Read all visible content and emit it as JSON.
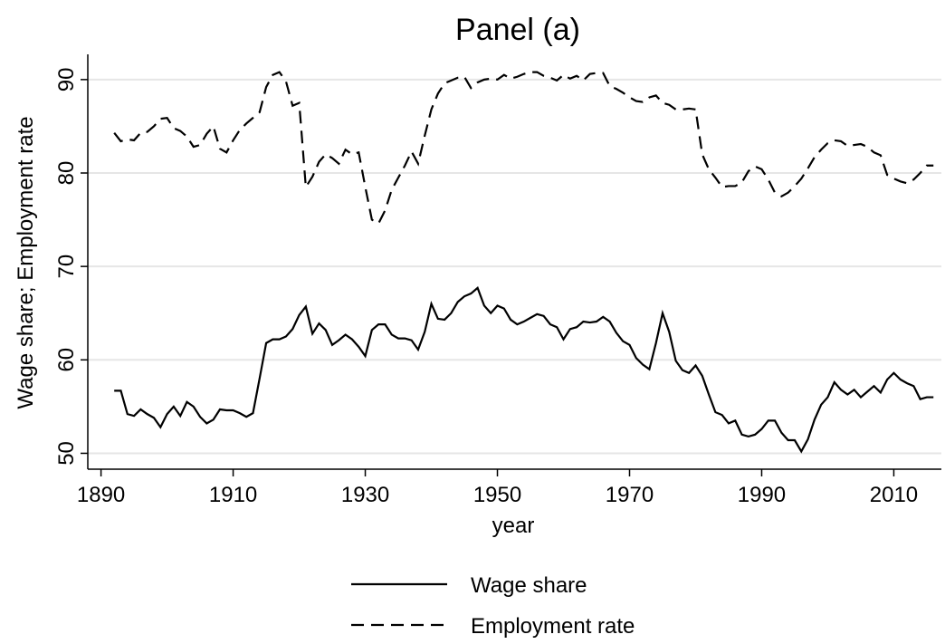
{
  "chart_data": {
    "type": "line",
    "title": "Panel (a)",
    "x_label": "year",
    "y_label": "Wage share; Employment rate",
    "x": [
      1892,
      1893,
      1894,
      1895,
      1896,
      1897,
      1898,
      1899,
      1900,
      1901,
      1902,
      1903,
      1904,
      1905,
      1906,
      1907,
      1908,
      1909,
      1910,
      1911,
      1912,
      1913,
      1914,
      1915,
      1916,
      1917,
      1918,
      1919,
      1920,
      1921,
      1922,
      1923,
      1924,
      1925,
      1926,
      1927,
      1928,
      1929,
      1930,
      1931,
      1932,
      1933,
      1934,
      1935,
      1936,
      1937,
      1938,
      1939,
      1940,
      1941,
      1942,
      1943,
      1944,
      1945,
      1946,
      1947,
      1948,
      1949,
      1950,
      1951,
      1952,
      1953,
      1954,
      1955,
      1956,
      1957,
      1958,
      1959,
      1960,
      1961,
      1962,
      1963,
      1964,
      1965,
      1966,
      1967,
      1968,
      1969,
      1970,
      1971,
      1972,
      1973,
      1974,
      1975,
      1976,
      1977,
      1978,
      1979,
      1980,
      1981,
      1982,
      1983,
      1984,
      1985,
      1986,
      1987,
      1988,
      1989,
      1990,
      1991,
      1992,
      1993,
      1994,
      1995,
      1996,
      1997,
      1998,
      1999,
      2000,
      2001,
      2002,
      2003,
      2004,
      2005,
      2006,
      2007,
      2008,
      2009,
      2010,
      2011,
      2012,
      2013,
      2014,
      2015,
      2016
    ],
    "series": [
      {
        "name": "Wage share",
        "color": "#000000",
        "line_style": "solid",
        "values": [
          56.7,
          56.7,
          54.2,
          54.0,
          54.7,
          54.2,
          53.8,
          52.8,
          54.2,
          55.0,
          54.0,
          55.5,
          55.0,
          53.9,
          53.2,
          53.6,
          54.7,
          54.6,
          54.6,
          54.3,
          53.9,
          54.3,
          58.0,
          61.8,
          62.2,
          62.2,
          62.5,
          63.3,
          64.8,
          65.7,
          62.8,
          63.9,
          63.2,
          61.6,
          62.1,
          62.7,
          62.2,
          61.4,
          60.4,
          63.2,
          63.8,
          63.8,
          62.7,
          62.3,
          62.3,
          62.1,
          61.1,
          63.0,
          66.0,
          64.4,
          64.3,
          65.0,
          66.2,
          66.8,
          67.1,
          67.7,
          65.8,
          65.0,
          65.8,
          65.5,
          64.3,
          63.8,
          64.1,
          64.5,
          64.9,
          64.7,
          63.8,
          63.5,
          62.2,
          63.3,
          63.5,
          64.1,
          64.0,
          64.1,
          64.6,
          64.1,
          62.9,
          62.0,
          61.6,
          60.2,
          59.5,
          59.0,
          61.8,
          65.0,
          63.0,
          59.9,
          58.9,
          58.6,
          59.4,
          58.3,
          56.3,
          54.4,
          54.1,
          53.2,
          53.5,
          52.0,
          51.8,
          52.0,
          52.6,
          53.5,
          53.5,
          52.2,
          51.4,
          51.4,
          50.2,
          51.5,
          53.6,
          55.2,
          56.0,
          57.6,
          56.8,
          56.3,
          56.8,
          56.0,
          56.6,
          57.2,
          56.5,
          57.9,
          58.6,
          57.9,
          57.5,
          57.2,
          55.8,
          56.0,
          56.0
        ]
      },
      {
        "name": "Employment rate",
        "color": "#000000",
        "line_style": "dash",
        "values": [
          84.3,
          83.4,
          83.6,
          83.5,
          84.3,
          84.4,
          85.0,
          85.8,
          85.9,
          84.8,
          84.5,
          83.9,
          82.8,
          83.0,
          84.2,
          85.0,
          82.6,
          82.2,
          83.5,
          84.6,
          85.3,
          85.9,
          86.5,
          89.2,
          90.5,
          90.8,
          89.8,
          87.2,
          87.5,
          78.5,
          79.6,
          81.2,
          82.0,
          81.6,
          81.0,
          82.5,
          82.0,
          82.2,
          78.5,
          75.0,
          74.6,
          76.0,
          78.2,
          79.5,
          80.8,
          82.3,
          81.0,
          84.0,
          86.8,
          88.5,
          89.6,
          89.9,
          90.2,
          90.3,
          89.1,
          89.7,
          90.0,
          90.1,
          90.0,
          90.5,
          90.1,
          90.3,
          90.6,
          90.8,
          90.8,
          90.4,
          90.2,
          89.9,
          90.5,
          90.1,
          90.4,
          89.9,
          90.6,
          90.7,
          90.7,
          89.3,
          89.0,
          88.6,
          88.1,
          87.7,
          87.6,
          88.1,
          88.3,
          87.5,
          87.3,
          86.8,
          86.8,
          86.9,
          86.8,
          82.0,
          80.4,
          79.5,
          78.5,
          78.6,
          78.6,
          79.0,
          80.2,
          80.7,
          80.4,
          79.3,
          77.9,
          77.5,
          77.9,
          78.6,
          79.4,
          80.5,
          81.7,
          82.5,
          83.2,
          83.5,
          83.4,
          82.9,
          83.0,
          83.1,
          82.8,
          82.2,
          81.9,
          79.8,
          79.4,
          79.1,
          78.9,
          79.3,
          80.0,
          80.8,
          80.8
        ]
      }
    ],
    "xlim": [
      1888,
      2017.2
    ],
    "xticks": [
      1890,
      1910,
      1930,
      1950,
      1970,
      1990,
      2010
    ],
    "ylim": [
      48.3,
      92.7
    ],
    "yticks": [
      50,
      60,
      70,
      80,
      90
    ],
    "grid": true,
    "legend_position": "bottom"
  }
}
